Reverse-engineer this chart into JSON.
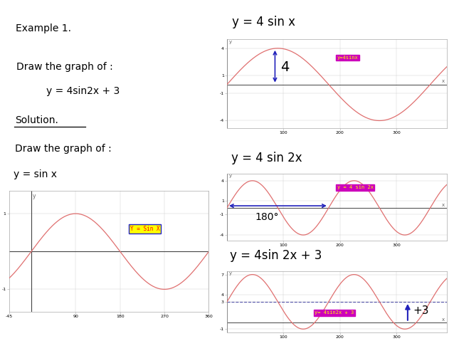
{
  "bg_color": "#ffffff",
  "green_light": "#90ee90",
  "yellow": "#ffff00",
  "sin_color": "#e07070",
  "arrow_color": "#2222bb",
  "magenta_bg": "#cc00bb",
  "title1": "y = 4 sin x",
  "title2": "y = 4 sin 2x",
  "title3": "y = 4sin 2x + 3",
  "label1": "y=4sinx",
  "label2": "y = 4 sin 2x",
  "label3": "y= 4sin2x + 3",
  "label_sinx": "Y = Sin X"
}
